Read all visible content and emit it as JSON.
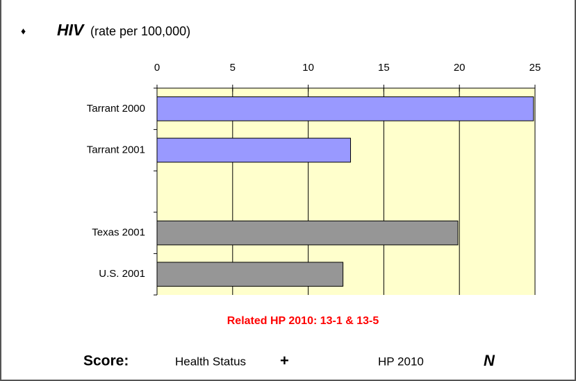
{
  "bullet": "♦",
  "heading": "HIV",
  "heading_note": "(rate per 100,000)",
  "chart_data": {
    "type": "bar",
    "orientation": "horizontal",
    "categories": [
      "Tarrant 2000",
      "Tarrant 2001",
      null,
      "Texas 2001",
      "U.S. 2001"
    ],
    "values": [
      24.9,
      12.8,
      null,
      19.9,
      12.3
    ],
    "colors": [
      "#9999ff",
      "#9999ff",
      null,
      "#969696",
      "#969696"
    ],
    "xlim": [
      0,
      25
    ],
    "xticks": [
      0,
      5,
      10,
      15,
      20,
      25
    ],
    "grid": true,
    "background": "#ffffcc"
  },
  "related": "Related HP 2010: 13-1 & 13-5",
  "score": {
    "label": "Score:",
    "items": [
      {
        "name": "Health Status",
        "symbol": "+"
      },
      {
        "name": "HP 2010",
        "symbol": "N"
      }
    ]
  }
}
